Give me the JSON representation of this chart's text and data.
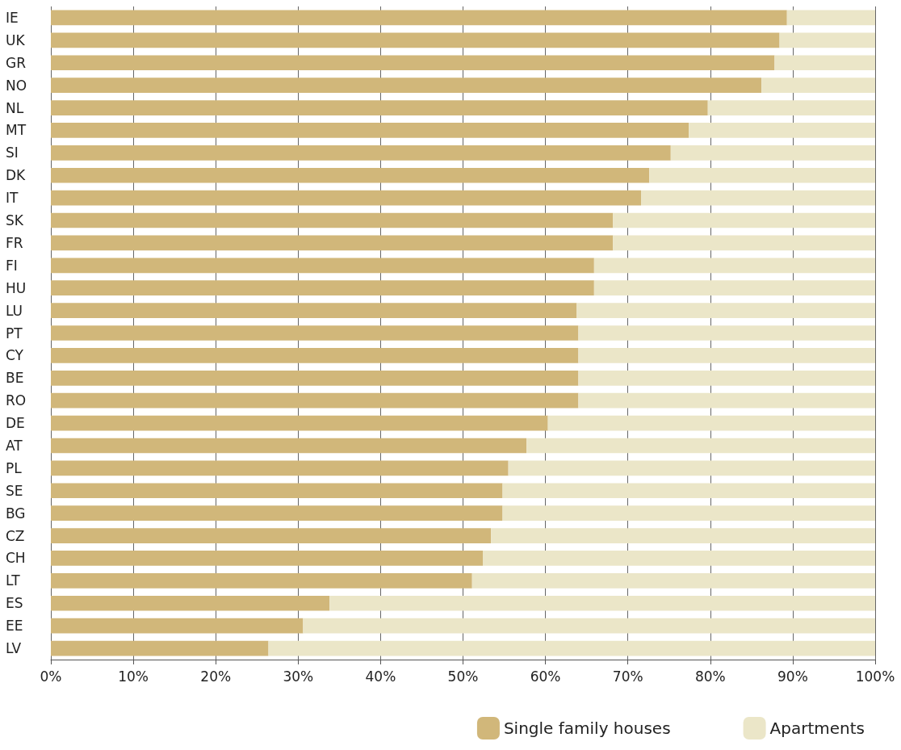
{
  "chart_data": {
    "type": "bar",
    "orientation": "horizontal",
    "stacked": true,
    "categories": [
      "IE",
      "UK",
      "GR",
      "NO",
      "NL",
      "MT",
      "SI",
      "DK",
      "IT",
      "SK",
      "FR",
      "FI",
      "HU",
      "LU",
      "PT",
      "CY",
      "BE",
      "RO",
      "DE",
      "AT",
      "PL",
      "SE",
      "BG",
      "CZ",
      "CH",
      "LT",
      "ES",
      "EE",
      "LV"
    ],
    "series": [
      {
        "name": "Single family houses",
        "color": "#d1b77a",
        "values": [
          89.3,
          88.4,
          87.8,
          86.2,
          79.7,
          77.4,
          75.2,
          72.6,
          71.6,
          68.2,
          68.2,
          65.9,
          65.9,
          63.8,
          64.0,
          64.0,
          64.0,
          64.0,
          60.3,
          57.7,
          55.5,
          54.8,
          54.8,
          53.4,
          52.4,
          51.1,
          33.8,
          30.6,
          26.4
        ]
      },
      {
        "name": "Apartments",
        "color": "#ebe6c8",
        "values": [
          10.7,
          11.6,
          12.2,
          13.8,
          20.3,
          22.6,
          24.8,
          27.4,
          28.4,
          31.8,
          31.8,
          34.1,
          34.1,
          36.2,
          36.0,
          36.0,
          36.0,
          36.0,
          39.7,
          42.3,
          44.5,
          45.2,
          45.2,
          46.6,
          47.6,
          48.9,
          66.2,
          69.4,
          73.6
        ]
      }
    ],
    "xlim": [
      0,
      100
    ],
    "xticks": [
      {
        "value": 0,
        "label": "0%"
      },
      {
        "value": 10,
        "label": "10%"
      },
      {
        "value": 20,
        "label": "20%"
      },
      {
        "value": 30,
        "label": "30%"
      },
      {
        "value": 40,
        "label": "40%"
      },
      {
        "value": 50,
        "label": "50%"
      },
      {
        "value": 60,
        "label": "60%"
      },
      {
        "value": 70,
        "label": "70%"
      },
      {
        "value": 80,
        "label": "80%"
      },
      {
        "value": 90,
        "label": "90%"
      },
      {
        "value": 100,
        "label": "100%"
      }
    ],
    "grid": "x",
    "legend": "bottom right"
  }
}
